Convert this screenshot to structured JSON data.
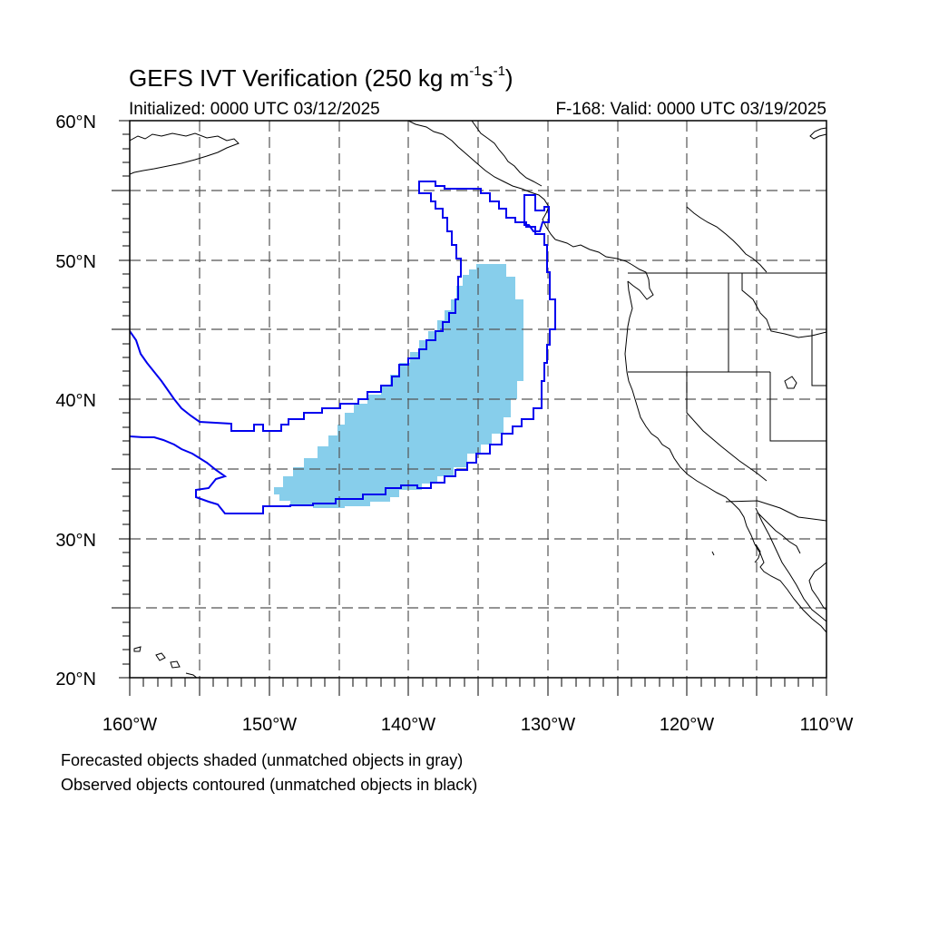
{
  "header": {
    "title_main": "GEFS IVT Verification (250 kg m",
    "title_exp1": "-1",
    "title_mid": "s",
    "title_exp2": "-1",
    "title_end": ")",
    "initialized": "Initialized: 0000 UTC 03/12/2025",
    "valid": "F-168: Valid: 0000 UTC 03/19/2025"
  },
  "axes": {
    "lat_labels": [
      "60°N",
      "50°N",
      "40°N",
      "30°N",
      "20°N"
    ],
    "lon_labels": [
      "160°W",
      "150°W",
      "140°W",
      "130°W",
      "120°W",
      "110°W"
    ],
    "lat_range": [
      20,
      60
    ],
    "lon_range": [
      -160,
      -110
    ]
  },
  "legend": {
    "note1": "Forecasted objects shaded (unmatched objects in gray)",
    "note2": "Observed objects contoured (unmatched objects in black)"
  },
  "colors": {
    "forecast_fill": "#87ceeb",
    "observed_contour": "#0000ee",
    "coastline": "#000000"
  }
}
